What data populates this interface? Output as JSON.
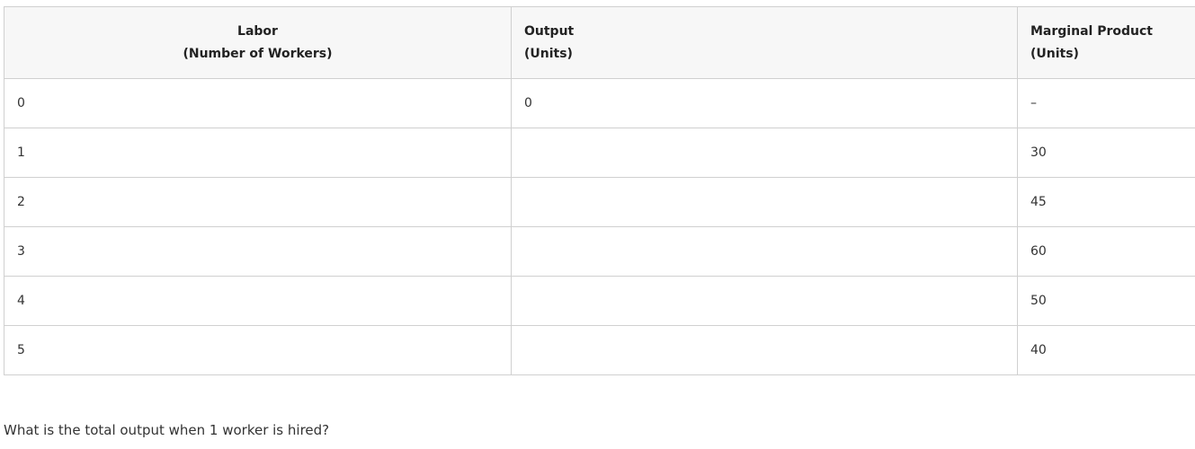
{
  "table": {
    "headers": [
      {
        "line1": "Labor",
        "line2": "(Number of Workers)"
      },
      {
        "line1": "Output",
        "line2": "(Units)"
      },
      {
        "line1": "Marginal Product",
        "line2": "(Units)"
      }
    ],
    "rows": [
      [
        "0",
        "0",
        "–"
      ],
      [
        "1",
        "",
        "30"
      ],
      [
        "2",
        "",
        "45"
      ],
      [
        "3",
        "",
        "60"
      ],
      [
        "4",
        "",
        "50"
      ],
      [
        "5",
        "",
        "40"
      ]
    ]
  },
  "question": "What is the total output when 1 worker is hired?"
}
